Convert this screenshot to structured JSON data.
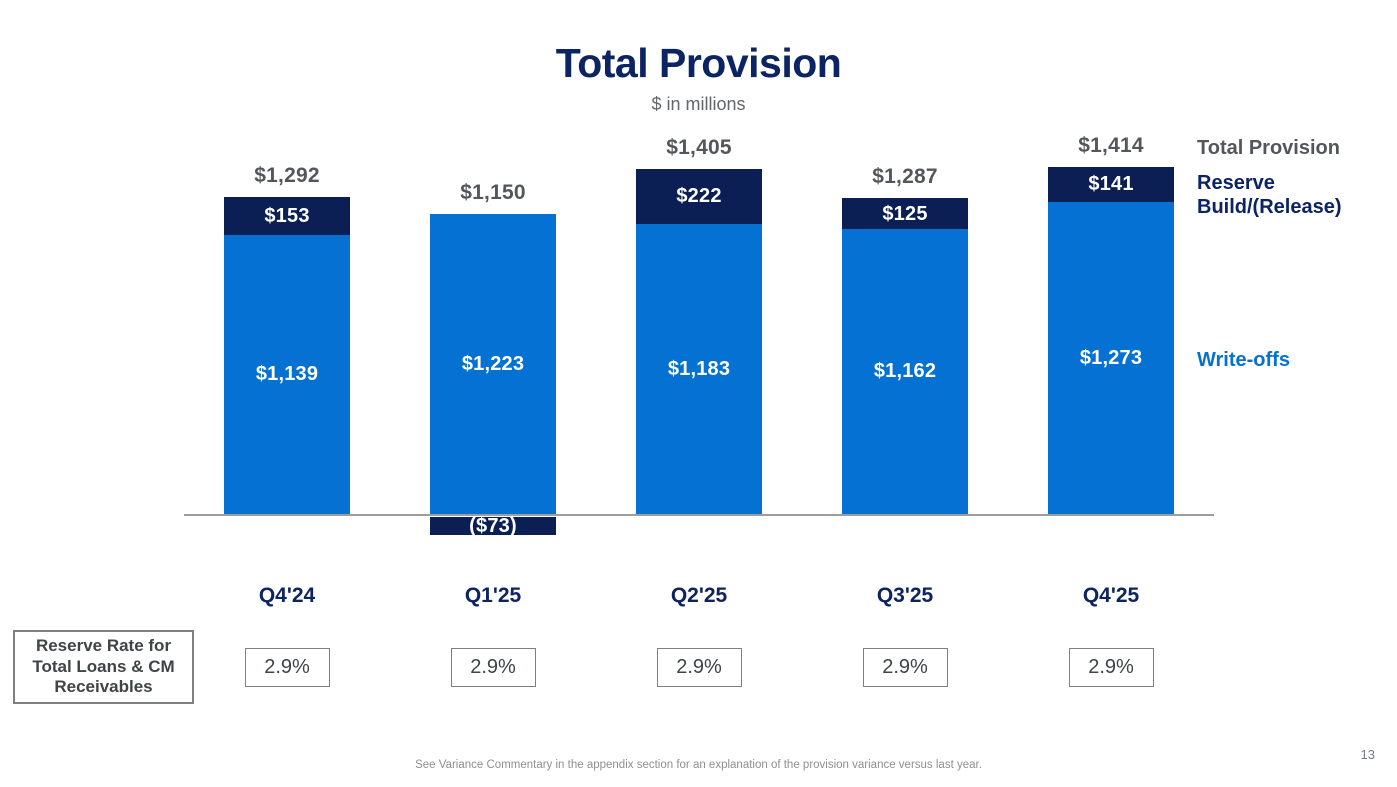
{
  "slide": {
    "title": "Total Provision",
    "subtitle": "$ in millions",
    "footnote": "See Variance Commentary in the appendix section for an explanation of the provision variance versus last year.",
    "page_number": "13"
  },
  "legend": {
    "total_provision": "Total Provision",
    "reserve_build_release": "Reserve Build/(Release)",
    "write_offs": "Write-offs"
  },
  "reserve_rate": {
    "box_label": "Reserve Rate for Total Loans & CM Receivables",
    "values": [
      "2.9%",
      "2.9%",
      "2.9%",
      "2.9%",
      "2.9%"
    ]
  },
  "chart_data": {
    "type": "bar",
    "stacked": true,
    "title": "Total Provision",
    "units": "$ in millions",
    "categories": [
      "Q4'24",
      "Q1'25",
      "Q2'25",
      "Q3'25",
      "Q4'25"
    ],
    "series": [
      {
        "name": "Write-offs",
        "values": [
          1139,
          1223,
          1183,
          1162,
          1273
        ],
        "labels": [
          "$1,139",
          "$1,223",
          "$1,183",
          "$1,162",
          "$1,273"
        ]
      },
      {
        "name": "Reserve Build/(Release)",
        "values": [
          153,
          -73,
          222,
          125,
          141
        ],
        "labels": [
          "$153",
          "($73)",
          "$222",
          "$125",
          "$141"
        ]
      }
    ],
    "totals": [
      1292,
      1150,
      1405,
      1287,
      1414
    ],
    "total_labels": [
      "$1,292",
      "$1,150",
      "$1,405",
      "$1,287",
      "$1,414"
    ],
    "ylim": [
      -100,
      1500
    ],
    "grid": false,
    "legend_position": "right"
  },
  "colors": {
    "writeoffs_blue": "#0571D2",
    "reserve_navy": "#0B1F54",
    "text_navy": "#0C2364",
    "gray_text": "#54565B",
    "axis_gray": "#9D9D9D"
  }
}
